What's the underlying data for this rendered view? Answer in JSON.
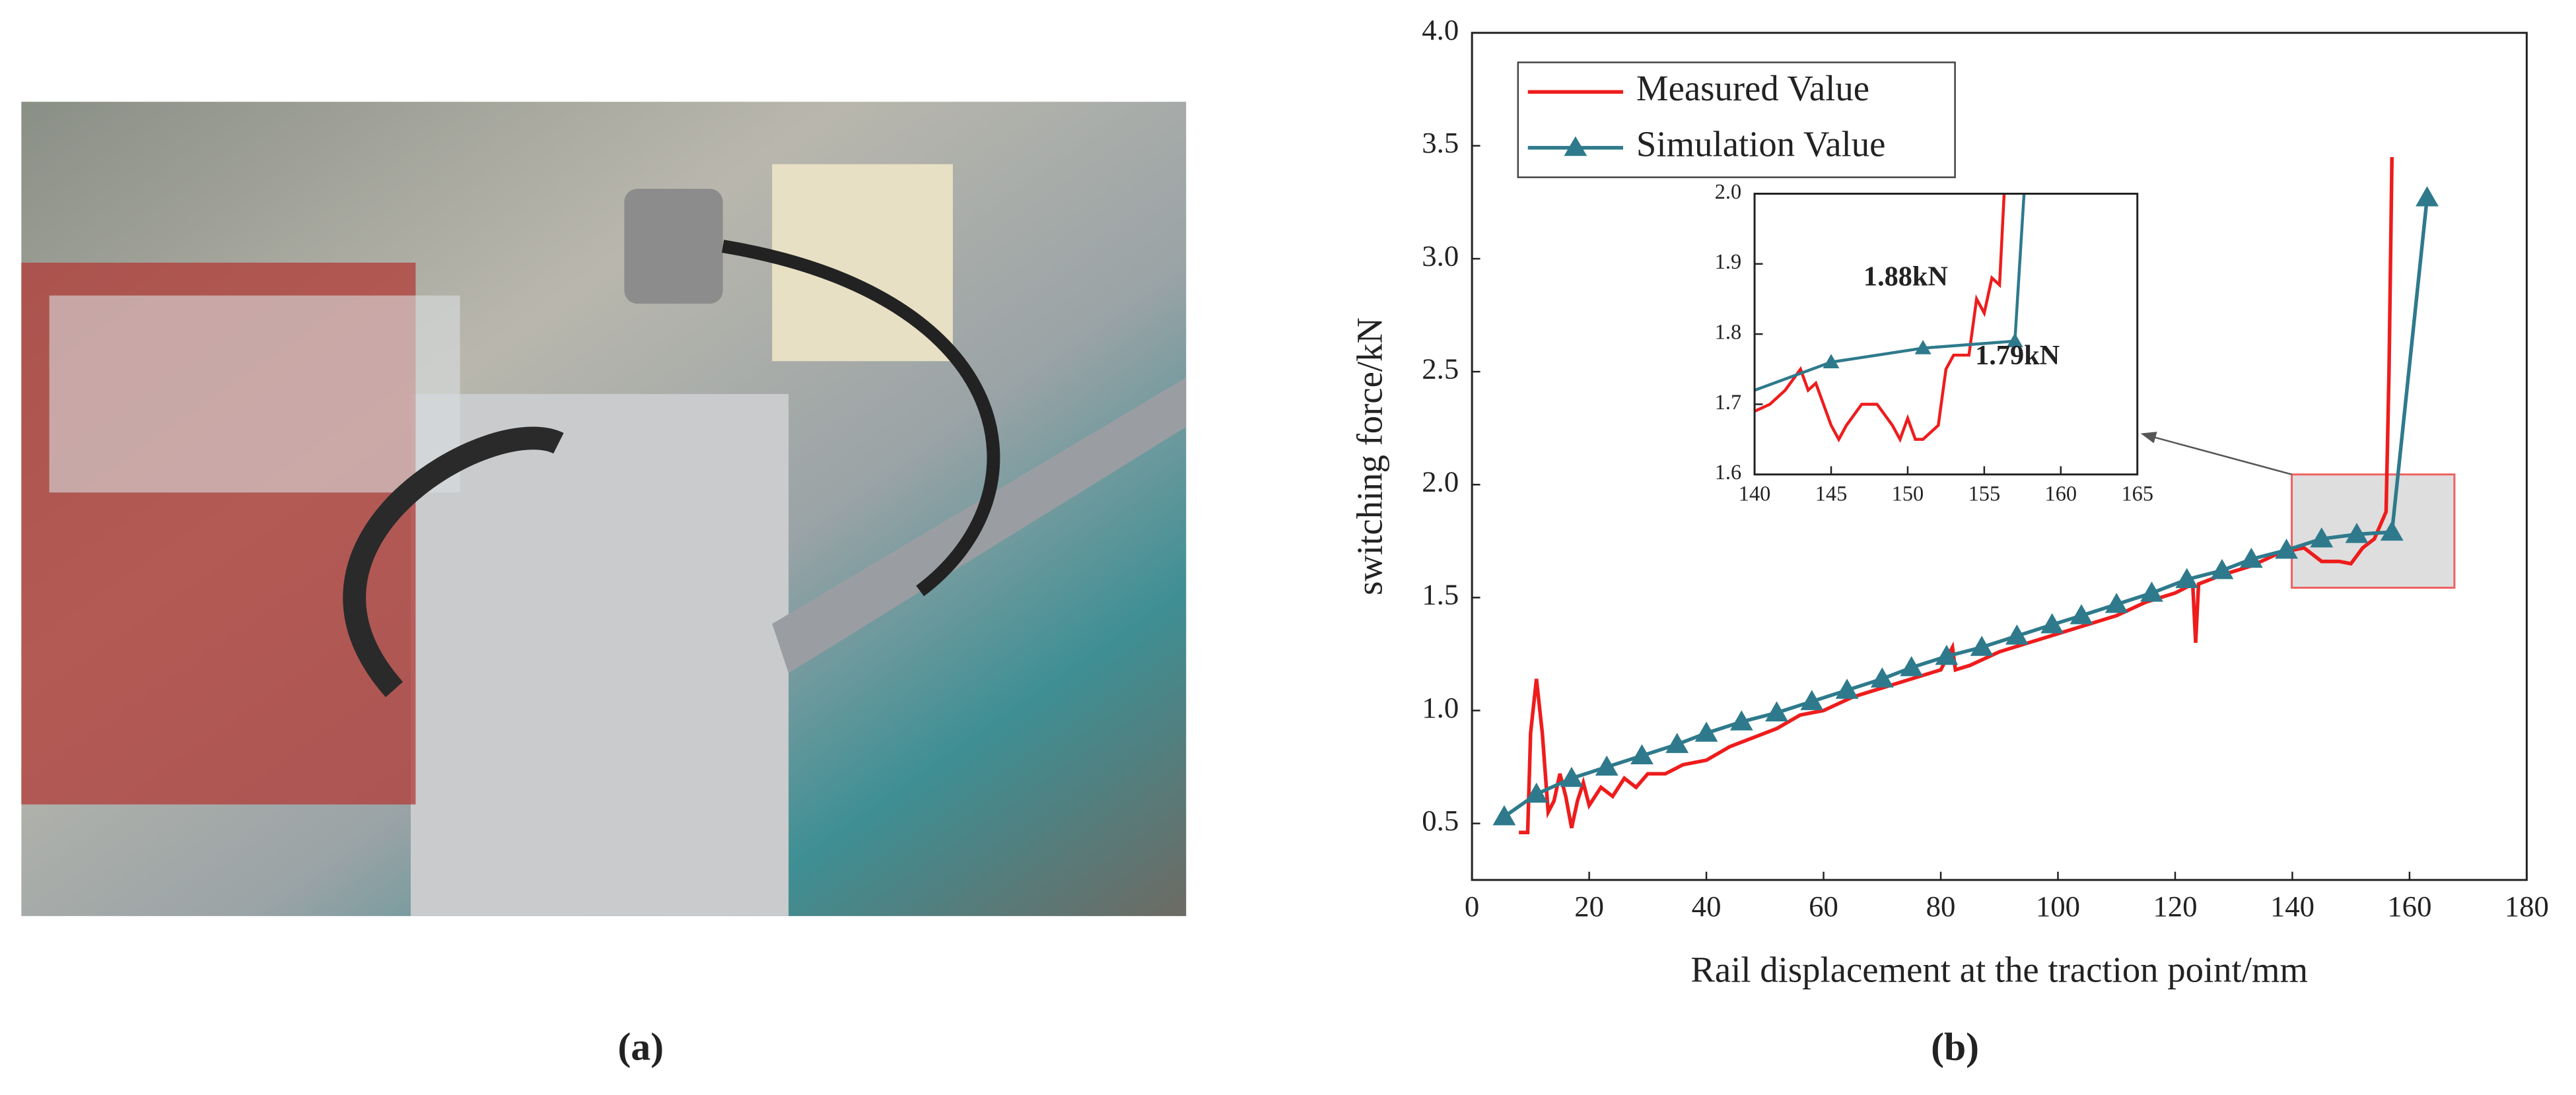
{
  "panel_labels": [
    "(a)",
    "(b)"
  ],
  "chart_data": [
    {
      "type": "line",
      "xlabel": "Rail displacement at the traction point/mm",
      "ylabel": "switching force/kN",
      "xlim": [
        0,
        180
      ],
      "xticks": [
        0,
        20,
        40,
        60,
        80,
        100,
        120,
        140,
        160,
        180
      ],
      "ylim": [
        0.25,
        4.0
      ],
      "yticks": [
        0.5,
        {
          "value": 1.0,
          "label": "1.0"
        },
        1.5,
        {
          "value": 2.0,
          "label": "2.0"
        },
        2.5,
        {
          "value": 3.0,
          "label": "3.0"
        },
        3.5,
        {
          "value": 4.0,
          "label": "4.0"
        }
      ],
      "legend": "upper left",
      "series": [
        {
          "name": "Measured Value",
          "color": "#ee1c1c",
          "x": [
            8,
            9.5,
            10,
            11,
            12,
            13,
            14,
            15,
            16,
            17,
            18,
            19,
            20,
            22,
            24,
            26,
            28,
            30,
            33,
            36,
            40,
            44,
            48,
            52,
            56,
            60,
            65,
            70,
            75,
            80,
            82,
            82.5,
            85,
            90,
            95,
            100,
            105,
            110,
            115,
            120,
            123,
            123.5,
            124,
            128,
            133,
            138,
            142,
            145,
            148,
            150,
            152,
            154,
            155,
            156,
            156.5,
            157
          ],
          "values": [
            0.46,
            0.46,
            0.9,
            1.14,
            0.9,
            0.55,
            0.6,
            0.72,
            0.62,
            0.48,
            0.6,
            0.68,
            0.58,
            0.66,
            0.62,
            0.7,
            0.66,
            0.72,
            0.72,
            0.76,
            0.78,
            0.84,
            0.88,
            0.92,
            0.98,
            1.0,
            1.06,
            1.1,
            1.14,
            1.18,
            1.28,
            1.18,
            1.2,
            1.26,
            1.3,
            1.34,
            1.38,
            1.42,
            1.48,
            1.52,
            1.56,
            1.3,
            1.56,
            1.6,
            1.64,
            1.7,
            1.72,
            1.66,
            1.66,
            1.65,
            1.72,
            1.76,
            1.82,
            1.88,
            2.5,
            3.45
          ]
        },
        {
          "name": "Simulation Value",
          "color": "#2e7a8c",
          "marker": "triangle",
          "x": [
            5.5,
            11,
            17,
            23,
            29,
            35,
            40,
            46,
            52,
            58,
            64,
            70,
            75,
            81,
            87,
            93,
            99,
            104,
            110,
            116,
            122,
            128,
            133,
            139,
            145,
            151,
            157,
            163
          ],
          "values": [
            0.53,
            0.63,
            0.7,
            0.75,
            0.8,
            0.85,
            0.9,
            0.95,
            0.99,
            1.04,
            1.09,
            1.14,
            1.19,
            1.24,
            1.28,
            1.33,
            1.38,
            1.42,
            1.47,
            1.52,
            1.58,
            1.62,
            1.67,
            1.71,
            1.76,
            1.78,
            1.79,
            3.27
          ]
        }
      ]
    },
    {
      "type": "line",
      "xlim": [
        140,
        165
      ],
      "xticks": [
        140,
        145,
        150,
        155,
        160,
        165
      ],
      "ylim": [
        1.6,
        2.0
      ],
      "yticks": [
        1.6,
        1.7,
        1.8,
        1.9,
        {
          "value": 2.0,
          "label": "2.0"
        }
      ],
      "series": [
        {
          "name": "Measured Value",
          "color": "#ee1c1c",
          "x": [
            140,
            141,
            142,
            143,
            143.5,
            144,
            145,
            145.5,
            146,
            147,
            148,
            149,
            149.5,
            150,
            150.5,
            151,
            152,
            152.5,
            153,
            154,
            154.5,
            155,
            155.5,
            156,
            156.3
          ],
          "values": [
            1.69,
            1.7,
            1.72,
            1.75,
            1.72,
            1.73,
            1.67,
            1.65,
            1.67,
            1.7,
            1.7,
            1.67,
            1.65,
            1.68,
            1.65,
            1.65,
            1.67,
            1.75,
            1.77,
            1.77,
            1.85,
            1.83,
            1.88,
            1.87,
            2.0
          ]
        },
        {
          "name": "Simulation Value",
          "color": "#2e7a8c",
          "marker": "triangle",
          "x": [
            140,
            145,
            151,
            157,
            157.6
          ],
          "values": [
            1.72,
            1.76,
            1.78,
            1.79,
            2.0
          ]
        }
      ],
      "annotations": [
        {
          "text": "1.88kN",
          "color": "#ee1c1c"
        },
        {
          "text": "1.79kN",
          "color": "#2e7a8c"
        }
      ]
    }
  ]
}
